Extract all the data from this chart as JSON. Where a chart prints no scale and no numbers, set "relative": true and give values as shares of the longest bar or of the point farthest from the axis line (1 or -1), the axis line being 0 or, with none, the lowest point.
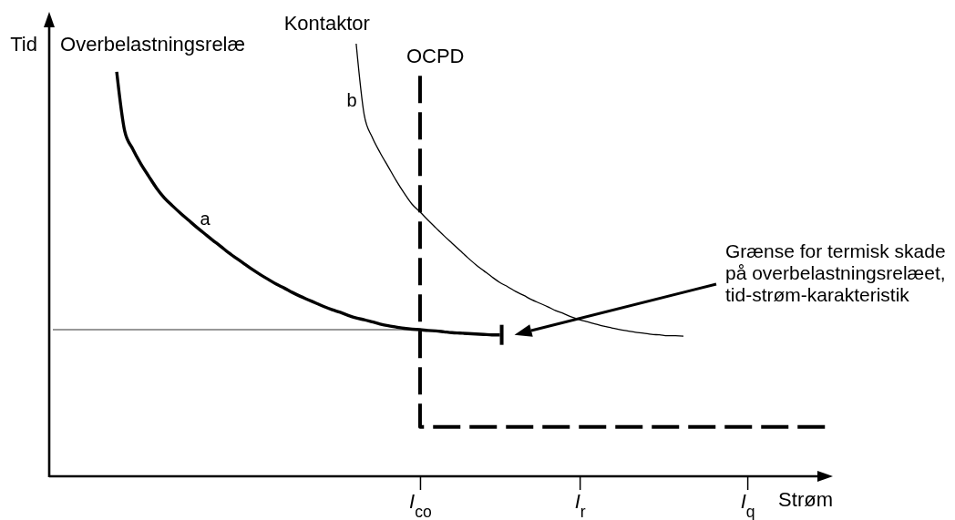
{
  "chart_data": {
    "type": "line",
    "relative": true,
    "xlabel": "Strøm",
    "ylabel": "Tid",
    "tick_labels": "x",
    "categories": [
      null,
      null,
      null,
      null,
      null,
      null,
      null,
      null,
      null,
      null,
      null,
      null,
      null,
      null,
      null,
      null,
      null,
      null,
      null,
      null,
      null,
      null,
      null,
      null,
      null,
      null,
      null,
      null,
      null,
      null,
      null,
      null,
      null,
      null,
      null,
      null,
      null,
      null,
      null,
      null,
      null,
      null,
      null,
      null,
      null,
      null,
      "I$_{co}$",
      null,
      null,
      null,
      null,
      null,
      null,
      null,
      null,
      null,
      null,
      null,
      null,
      null,
      null,
      null,
      null,
      null,
      null,
      null,
      "I$_{r}$",
      null,
      null,
      null,
      null,
      null,
      null,
      null,
      null,
      null,
      null,
      null,
      null,
      null,
      null,
      null,
      null,
      null,
      null,
      null,
      null,
      "I$_{q}$",
      null,
      null,
      null,
      null,
      null,
      null,
      null,
      null,
      null,
      null
    ],
    "series": [
      {
        "name": "Overbelastningsrelæ",
        "color": "#000000",
        "values": [
          null,
          null,
          null,
          null,
          null,
          null,
          null,
          null,
          0.935,
          0.798,
          0.757,
          0.723,
          0.694,
          0.666,
          0.643,
          0.625,
          0.608,
          0.592,
          0.576,
          0.561,
          0.546,
          0.532,
          0.517,
          0.504,
          0.491,
          0.478,
          0.466,
          0.455,
          0.444,
          0.435,
          0.425,
          0.416,
          0.408,
          0.4,
          0.392,
          0.385,
          0.379,
          0.372,
          0.366,
          0.362,
          0.357,
          0.352,
          0.348,
          0.345,
          0.342,
          0.34,
          0.339,
          0.337,
          0.336,
          0.334,
          0.332,
          0.331,
          0.33,
          0.329,
          0.328,
          0.327,
          0.327,
          null,
          null,
          null,
          null,
          null,
          null,
          null,
          null,
          null,
          null,
          null,
          null,
          null,
          null,
          null,
          null,
          null,
          null,
          null,
          null,
          null,
          null,
          null,
          null,
          null,
          null,
          null,
          null,
          null,
          null,
          null,
          null,
          null,
          null,
          null,
          null,
          null,
          null,
          null,
          null,
          null
        ]
      },
      {
        "name": "Kontaktor",
        "color": "#000000",
        "values": [
          null,
          null,
          null,
          null,
          null,
          null,
          null,
          null,
          null,
          null,
          null,
          null,
          null,
          null,
          null,
          null,
          null,
          null,
          null,
          null,
          null,
          null,
          null,
          null,
          null,
          null,
          null,
          null,
          null,
          null,
          null,
          null,
          null,
          null,
          null,
          null,
          null,
          null,
          1,
          0.836,
          0.784,
          0.748,
          0.716,
          0.684,
          0.655,
          0.629,
          0.611,
          0.592,
          0.574,
          0.556,
          0.539,
          0.522,
          0.505,
          0.489,
          0.475,
          0.461,
          0.448,
          0.438,
          0.427,
          0.418,
          0.408,
          0.4,
          0.392,
          0.383,
          0.376,
          0.368,
          0.362,
          0.357,
          0.352,
          0.347,
          0.343,
          0.339,
          0.336,
          0.333,
          0.331,
          0.328,
          0.327,
          0.325,
          0.325,
          0.324,
          null,
          null,
          null,
          null,
          null,
          null,
          null,
          null,
          null,
          null,
          null,
          null,
          null,
          null,
          null,
          null,
          null,
          null
        ]
      },
      {
        "name": "OCPD",
        "type": "step",
        "line_style": "dashed",
        "color": "#000000",
        "values": [
          null,
          null,
          null,
          null,
          null,
          null,
          null,
          null,
          null,
          null,
          null,
          null,
          null,
          null,
          null,
          null,
          null,
          null,
          null,
          null,
          null,
          null,
          null,
          null,
          null,
          null,
          null,
          null,
          null,
          null,
          null,
          null,
          null,
          null,
          null,
          null,
          null,
          null,
          null,
          null,
          null,
          null,
          null,
          null,
          null,
          null,
          0.926,
          0.114,
          0.114,
          0.114,
          0.114,
          0.114,
          0.114,
          0.114,
          0.114,
          0.114,
          0.114,
          0.114,
          0.114,
          0.114,
          0.114,
          0.114,
          0.114,
          0.114,
          0.114,
          0.114,
          0.114,
          0.114,
          0.114,
          0.114,
          0.114,
          0.114,
          0.114,
          0.114,
          0.114,
          0.114,
          0.114,
          0.114,
          0.114,
          0.114,
          0.114,
          0.114,
          0.114,
          0.114,
          0.114,
          0.114,
          0.114,
          0.114,
          0.114,
          0.114,
          0.114,
          0.114,
          0.114,
          0.114,
          0.114,
          0.114,
          0.114,
          0.114
        ]
      },
      {
        "color": "#333333",
        "values": [
          0.339,
          0.339,
          0.339,
          0.339,
          0.339,
          0.339,
          0.339,
          0.339,
          0.339,
          0.339,
          0.339,
          0.339,
          0.339,
          0.339,
          0.339,
          0.339,
          0.339,
          0.339,
          0.339,
          0.339,
          0.339,
          0.339,
          0.339,
          0.339,
          0.339,
          0.339,
          0.339,
          0.339,
          0.339,
          0.339,
          0.339,
          0.339,
          0.339,
          0.339,
          0.339,
          0.339,
          0.339,
          0.339,
          0.339,
          0.339,
          0.339,
          0.339,
          0.339,
          0.339,
          0.339,
          0.339,
          0.339,
          null,
          null,
          null,
          null,
          null,
          null,
          null,
          null,
          null,
          null,
          null,
          null,
          null,
          null,
          null,
          null,
          null,
          null,
          null,
          null,
          null,
          null,
          null,
          null,
          null,
          null,
          null,
          null,
          null,
          null,
          null,
          null,
          null,
          null,
          null,
          null,
          null,
          null,
          null,
          null,
          null,
          null,
          null,
          null,
          null,
          null,
          null,
          null,
          null,
          null,
          null
        ]
      }
    ],
    "annotations": [
      "a",
      "b",
      "Grænse for termisk skade\npå overbelastningsrelæet,\ntid-strøm-karakteristik"
    ]
  }
}
